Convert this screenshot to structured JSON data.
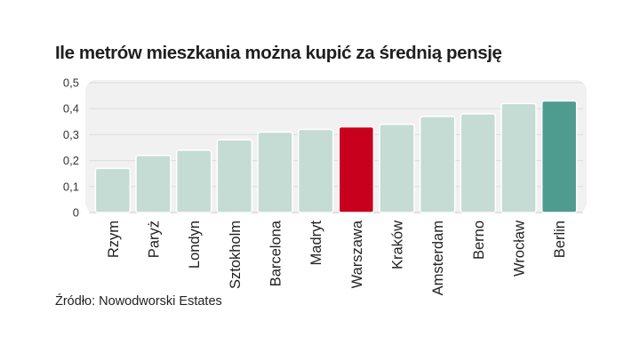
{
  "title": "Ile metrów mieszkania można kupić za średnią pensję",
  "source": "Źródło: Nowodworski Estates",
  "chart_data": {
    "type": "bar",
    "title": "Ile metrów mieszkania można kupić za średnią pensję",
    "xlabel": "",
    "ylabel": "",
    "ylim": [
      0,
      0.5
    ],
    "yticks": [
      0,
      0.1,
      0.2,
      0.3,
      0.4,
      0.5
    ],
    "ytick_labels": [
      "0",
      "0,1",
      "0,2",
      "0,3",
      "0,4",
      "0,5"
    ],
    "grid": true,
    "categories": [
      "Rzym",
      "Paryż",
      "Londyn",
      "Sztokholm",
      "Barcelona",
      "Madryt",
      "Warszawa",
      "Kraków",
      "Amsterdam",
      "Berno",
      "Wrocław",
      "Berlin"
    ],
    "values": [
      0.17,
      0.22,
      0.24,
      0.28,
      0.31,
      0.32,
      0.33,
      0.34,
      0.37,
      0.38,
      0.42,
      0.43
    ],
    "highlight": {
      "Warszawa": "#c8001e",
      "Berlin": "#4e9b8f"
    },
    "default_color": "#c4dcd4"
  }
}
